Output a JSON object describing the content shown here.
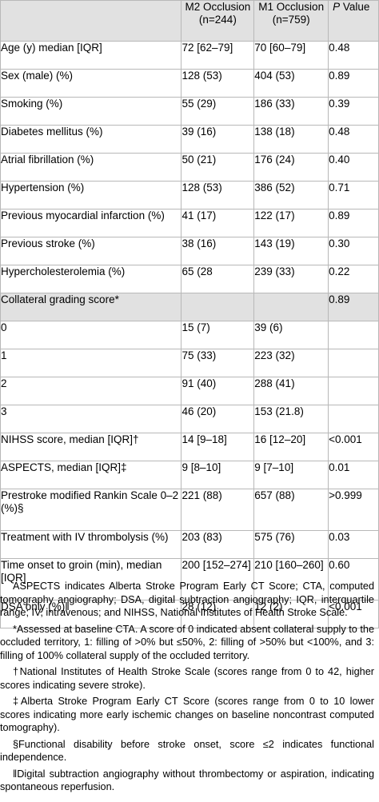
{
  "header": {
    "col_label": "",
    "col_m2": "M2 Occlusion (n=244)",
    "col_m2_line1": "M2 Occlusion",
    "col_m2_line2": "(n=244)",
    "col_m1_line1": "M1 Occlusion",
    "col_m1_line2": "(n=759)",
    "col_p_italic": "P",
    "col_p_rest": " Value"
  },
  "rows": [
    {
      "label": "Age (y) median [IQR]",
      "m2": "72 [62–79]",
      "m1": "70 [60–79]",
      "p": "0.48"
    },
    {
      "label": "Sex (male) (%)",
      "m2": "128 (53)",
      "m1": "404 (53)",
      "p": "0.89"
    },
    {
      "label": "Smoking (%)",
      "m2": "55 (29)",
      "m1": "186 (33)",
      "p": "0.39"
    },
    {
      "label": "Diabetes mellitus (%)",
      "m2": "39 (16)",
      "m1": "138 (18)",
      "p": "0.48"
    },
    {
      "label": "Atrial fibrillation (%)",
      "m2": "50 (21)",
      "m1": "176 (24)",
      "p": "0.40"
    },
    {
      "label": "Hypertension (%)",
      "m2": "128 (53)",
      "m1": "386 (52)",
      "p": "0.71"
    },
    {
      "label": "Previous myocardial infarction (%)",
      "m2": "41 (17)",
      "m1": "122 (17)",
      "p": "0.89"
    },
    {
      "label": "Previous stroke (%)",
      "m2": "38 (16)",
      "m1": "143 (19)",
      "p": "0.30"
    },
    {
      "label": "Hypercholesterolemia (%)",
      "m2": "65 (28",
      "m1": "239 (33)",
      "p": "0.22"
    },
    {
      "label": "Collateral grading score*",
      "m2": "",
      "m1": "",
      "p": "0.89"
    },
    {
      "label": "0",
      "m2": "15 (7)",
      "m1": "39 (6)",
      "p": ""
    },
    {
      "label": "1",
      "m2": "75 (33)",
      "m1": "223 (32)",
      "p": ""
    },
    {
      "label": "2",
      "m2": "91 (40)",
      "m1": "288 (41)",
      "p": ""
    },
    {
      "label": "3",
      "m2": "46 (20)",
      "m1": "153 (21.8)",
      "p": ""
    },
    {
      "label": "NIHSS score, median [IQR]†",
      "m2": "14 [9–18]",
      "m1": "16 [12–20]",
      "p": "<0.001"
    },
    {
      "label": "ASPECTS, median [IQR]‡",
      "m2": "9 [8–10]",
      "m1": "9 [7–10]",
      "p": "0.01"
    },
    {
      "label": "Prestroke modified Rankin Scale 0–2 (%)§",
      "m2": "221 (88)",
      "m1": "657 (88)",
      "p": ">0.999"
    },
    {
      "label": "Treatment with IV thrombolysis (%)",
      "m2": "203 (83)",
      "m1": "575 (76)",
      "p": "0.03"
    },
    {
      "label": "Time onset to groin (min), median [IQR]",
      "m2": "200 [152–274]",
      "m1": "210 [160–260]",
      "p": "0.60"
    },
    {
      "label": "DSA only (%)‖",
      "m2": "28 (12)",
      "m1": "12 (2)",
      "p": "<0.001"
    }
  ],
  "notes": [
    "ASPECTS indicates Alberta Stroke Program Early CT Score; CTA, computed tomography angiography; DSA, digital subtraction angiography; IQR, interquartile range; IV, intravenous; and NIHSS, National Institutes of Health Stroke Scale.",
    "*Assessed at baseline CTA. A score of 0 indicated absent collateral supply to the occluded territory, 1: filling of >0% but ≤50%, 2: filling of >50% but <100%, and 3: filling of 100% collateral supply of the occluded territory.",
    "†National Institutes of Health Stroke Scale (scores range from 0 to 42, higher scores indicating severe stroke).",
    "‡Alberta Stroke Program Early CT Score (scores range from 0 to 10 lower scores indicating more early ischemic changes on baseline noncontrast computed tomography).",
    "§Functional disability before stroke onset, score ≤2 indicates functional independence.",
    "‖Digital subtraction angiography without thrombectomy or aspiration, indicating spontaneous reperfusion."
  ]
}
